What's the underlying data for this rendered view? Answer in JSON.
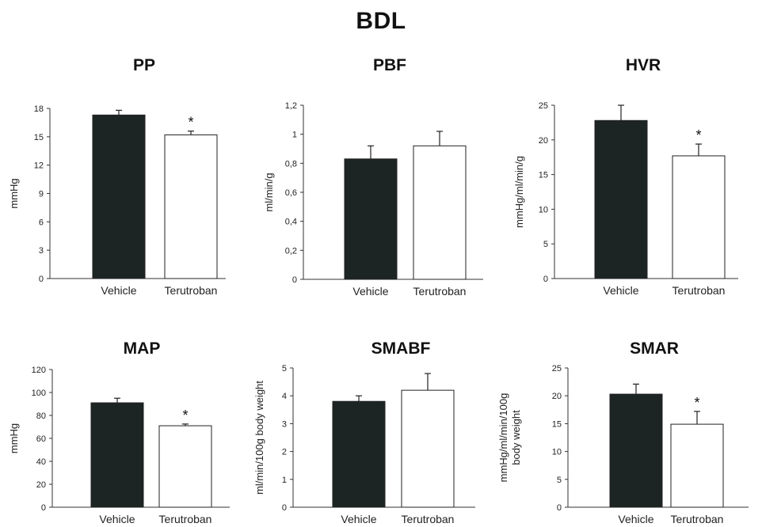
{
  "figure_title": "BDL",
  "colors": {
    "vehicle": "#1c2424",
    "terutroban": "#ffffff",
    "outline": "#222222"
  },
  "chart_data": [
    {
      "type": "bar",
      "title": "PP",
      "ylabel": [
        "mmHg"
      ],
      "categories": [
        "Vehicle",
        "Terutroban"
      ],
      "values": [
        17.3,
        15.2
      ],
      "errors": [
        0.5,
        0.4
      ],
      "significant": [
        false,
        true
      ],
      "marker": "*",
      "ylim": [
        0,
        18
      ],
      "yticks": [
        0,
        3,
        6,
        9,
        12,
        15,
        18
      ],
      "yticklabels": [
        "0",
        "3",
        "6",
        "9",
        "12",
        "15",
        "18"
      ]
    },
    {
      "type": "bar",
      "title": "PBF",
      "ylabel": [
        "ml/min/g"
      ],
      "categories": [
        "Vehicle",
        "Terutroban"
      ],
      "values": [
        0.83,
        0.92
      ],
      "errors": [
        0.09,
        0.1
      ],
      "significant": [
        false,
        false
      ],
      "marker": "*",
      "ylim": [
        0,
        1.2
      ],
      "yticks": [
        0,
        0.2,
        0.4,
        0.6,
        0.8,
        1,
        1.2
      ],
      "yticklabels": [
        "0",
        "0,2",
        "0,4",
        "0,6",
        "0,8",
        "1",
        "1,2"
      ]
    },
    {
      "type": "bar",
      "title": "HVR",
      "ylabel": [
        "mmHg/ml/min/g"
      ],
      "categories": [
        "Vehicle",
        "Terutroban"
      ],
      "values": [
        22.8,
        17.7
      ],
      "errors": [
        2.2,
        1.7
      ],
      "significant": [
        false,
        true
      ],
      "marker": "*",
      "ylim": [
        0,
        25
      ],
      "yticks": [
        0,
        5,
        10,
        15,
        20,
        25
      ],
      "yticklabels": [
        "0",
        "5",
        "10",
        "15",
        "20",
        "25"
      ]
    },
    {
      "type": "bar",
      "title": "MAP",
      "ylabel": [
        "mmHg"
      ],
      "categories": [
        "Vehicle",
        "Terutroban"
      ],
      "values": [
        91,
        71
      ],
      "errors": [
        4,
        1.5
      ],
      "significant": [
        false,
        true
      ],
      "marker": "*",
      "ylim": [
        0,
        120
      ],
      "yticks": [
        0,
        20,
        40,
        60,
        80,
        100,
        120
      ],
      "yticklabels": [
        "0",
        "20",
        "40",
        "60",
        "80",
        "100",
        "120"
      ]
    },
    {
      "type": "bar",
      "title": "SMABF",
      "ylabel": [
        "ml/min/100g body weight"
      ],
      "categories": [
        "Vehicle",
        "Terutroban"
      ],
      "values": [
        3.8,
        4.2
      ],
      "errors": [
        0.2,
        0.6
      ],
      "significant": [
        false,
        false
      ],
      "marker": "*",
      "ylim": [
        0,
        5
      ],
      "yticks": [
        0,
        1,
        2,
        3,
        4,
        5
      ],
      "yticklabels": [
        "0",
        "1",
        "2",
        "3",
        "4",
        "5"
      ]
    },
    {
      "type": "bar",
      "title": "SMAR",
      "ylabel": [
        "mmHg/ml/min/100g",
        "body weight"
      ],
      "categories": [
        "Vehicle",
        "Terutroban"
      ],
      "values": [
        20.3,
        14.9
      ],
      "errors": [
        1.8,
        2.3
      ],
      "significant": [
        false,
        true
      ],
      "marker": "*",
      "ylim": [
        0,
        25
      ],
      "yticks": [
        0,
        5,
        10,
        15,
        20,
        25
      ],
      "yticklabels": [
        "0",
        "5",
        "10",
        "15",
        "20",
        "25"
      ]
    }
  ]
}
